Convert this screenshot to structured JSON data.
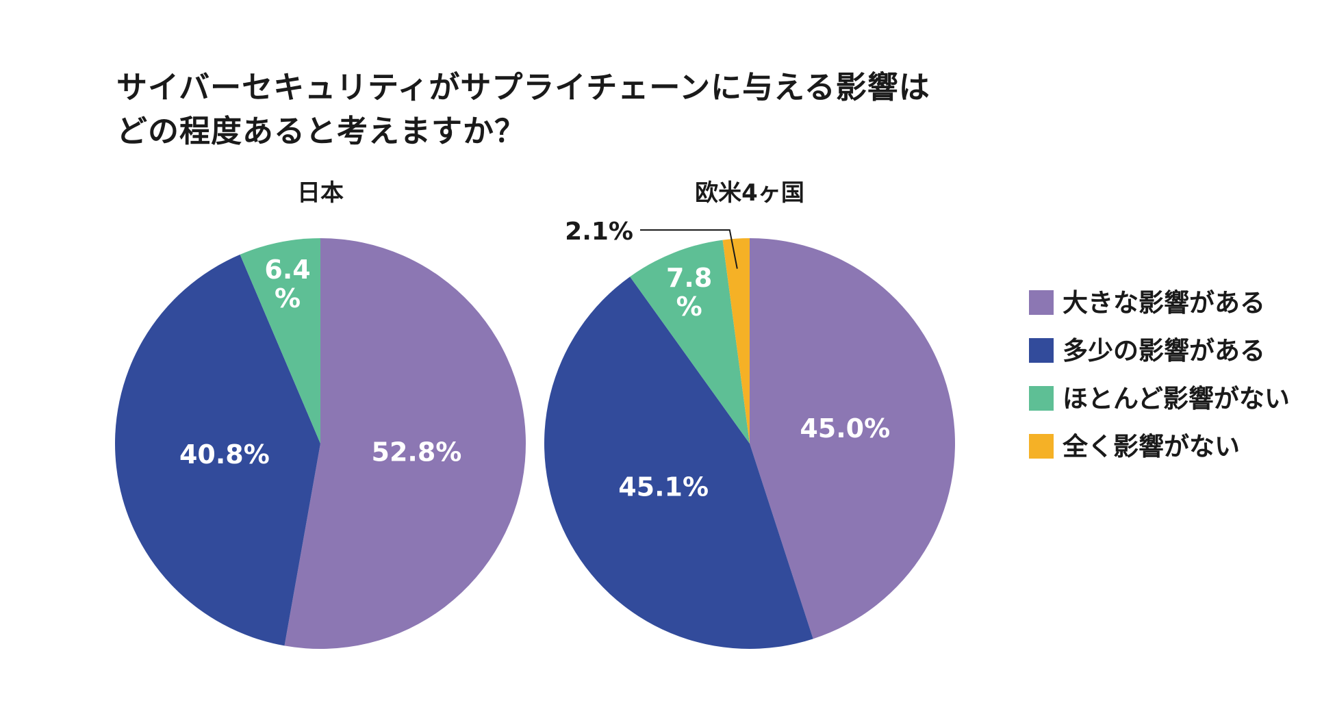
{
  "title": {
    "line1": "サイバーセキュリティがサプライチェーンに与える影響は",
    "line2": "どの程度あると考えますか？"
  },
  "chart_data": [
    {
      "type": "pie",
      "title": "日本",
      "slices": [
        {
          "category": "大きな影響がある",
          "value": 52.8,
          "label": "52.8%"
        },
        {
          "category": "多少の影響がある",
          "value": 40.8,
          "label": "40.8%"
        },
        {
          "category": "ほとんど影響がない",
          "value": 6.4,
          "label": "6.4%"
        }
      ]
    },
    {
      "type": "pie",
      "title": "欧米4ヶ国",
      "slices": [
        {
          "category": "大きな影響がある",
          "value": 45.0,
          "label": "45.0%"
        },
        {
          "category": "多少の影響がある",
          "value": 45.1,
          "label": "45.1%"
        },
        {
          "category": "ほとんど影響がない",
          "value": 7.8,
          "label": "7.8%"
        },
        {
          "category": "全く影響がない",
          "value": 2.1,
          "label": "2.1%"
        }
      ]
    }
  ],
  "legend": [
    {
      "label": "大きな影響がある",
      "color": "#8c77b3"
    },
    {
      "label": "多少の影響がある",
      "color": "#324b9b"
    },
    {
      "label": "ほとんど影響がない",
      "color": "#5ebf95"
    },
    {
      "label": "全く影響がない",
      "color": "#f5b126"
    }
  ]
}
